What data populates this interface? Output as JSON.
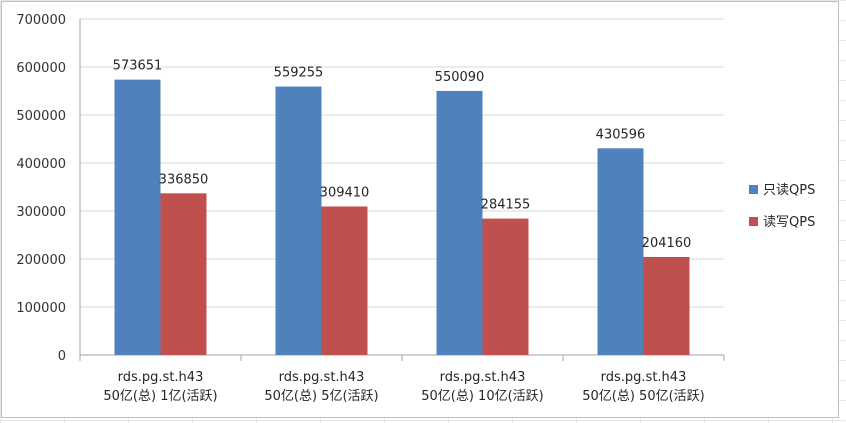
{
  "chart_data": {
    "type": "bar",
    "categories": [
      [
        "rds.pg.st.h43",
        "50亿(总) 1亿(活跃)"
      ],
      [
        "rds.pg.st.h43",
        "50亿(总) 5亿(活跃)"
      ],
      [
        "rds.pg.st.h43",
        "50亿(总) 10亿(活跃)"
      ],
      [
        "rds.pg.st.h43",
        "50亿(总) 50亿(活跃)"
      ]
    ],
    "series": [
      {
        "name": "只读QPS",
        "color": "#4f81bd",
        "values": [
          573651,
          559255,
          550090,
          430596
        ]
      },
      {
        "name": "读写QPS",
        "color": "#c0504d",
        "values": [
          336850,
          309410,
          284155,
          204160
        ]
      }
    ],
    "ylim": [
      0,
      700000
    ],
    "yticks": [
      0,
      100000,
      200000,
      300000,
      400000,
      500000,
      600000,
      700000
    ],
    "grid": true,
    "legend_position": "right",
    "title": "",
    "xlabel": "",
    "ylabel": ""
  }
}
